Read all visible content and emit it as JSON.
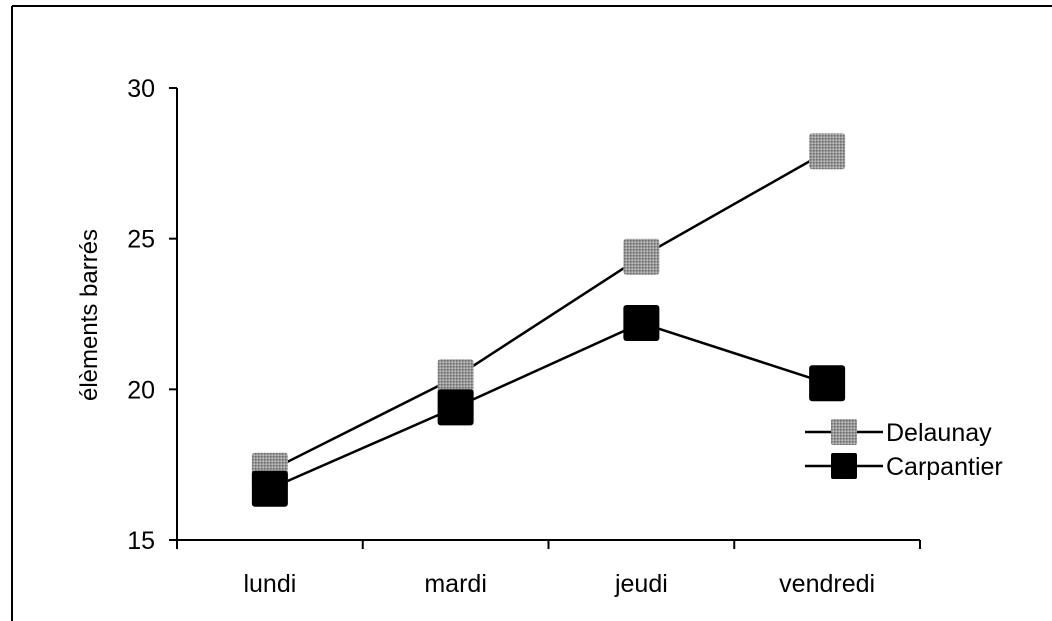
{
  "chart_data": {
    "type": "line",
    "title": "",
    "xlabel": "",
    "ylabel": "élèments barrés",
    "categories": [
      "lundi",
      "mardi",
      "jeudi",
      "vendredi"
    ],
    "ylim": [
      15,
      30
    ],
    "yticks": [
      15,
      20,
      25,
      30
    ],
    "grid": false,
    "legend_position": "right",
    "series": [
      {
        "name": "Delaunay",
        "values": [
          17.3,
          20.4,
          24.4,
          27.9
        ],
        "marker": "square",
        "color": "#8c8c8c"
      },
      {
        "name": "Carpantier",
        "values": [
          16.7,
          19.4,
          22.2,
          20.2
        ],
        "marker": "square",
        "color": "#000000"
      }
    ]
  }
}
